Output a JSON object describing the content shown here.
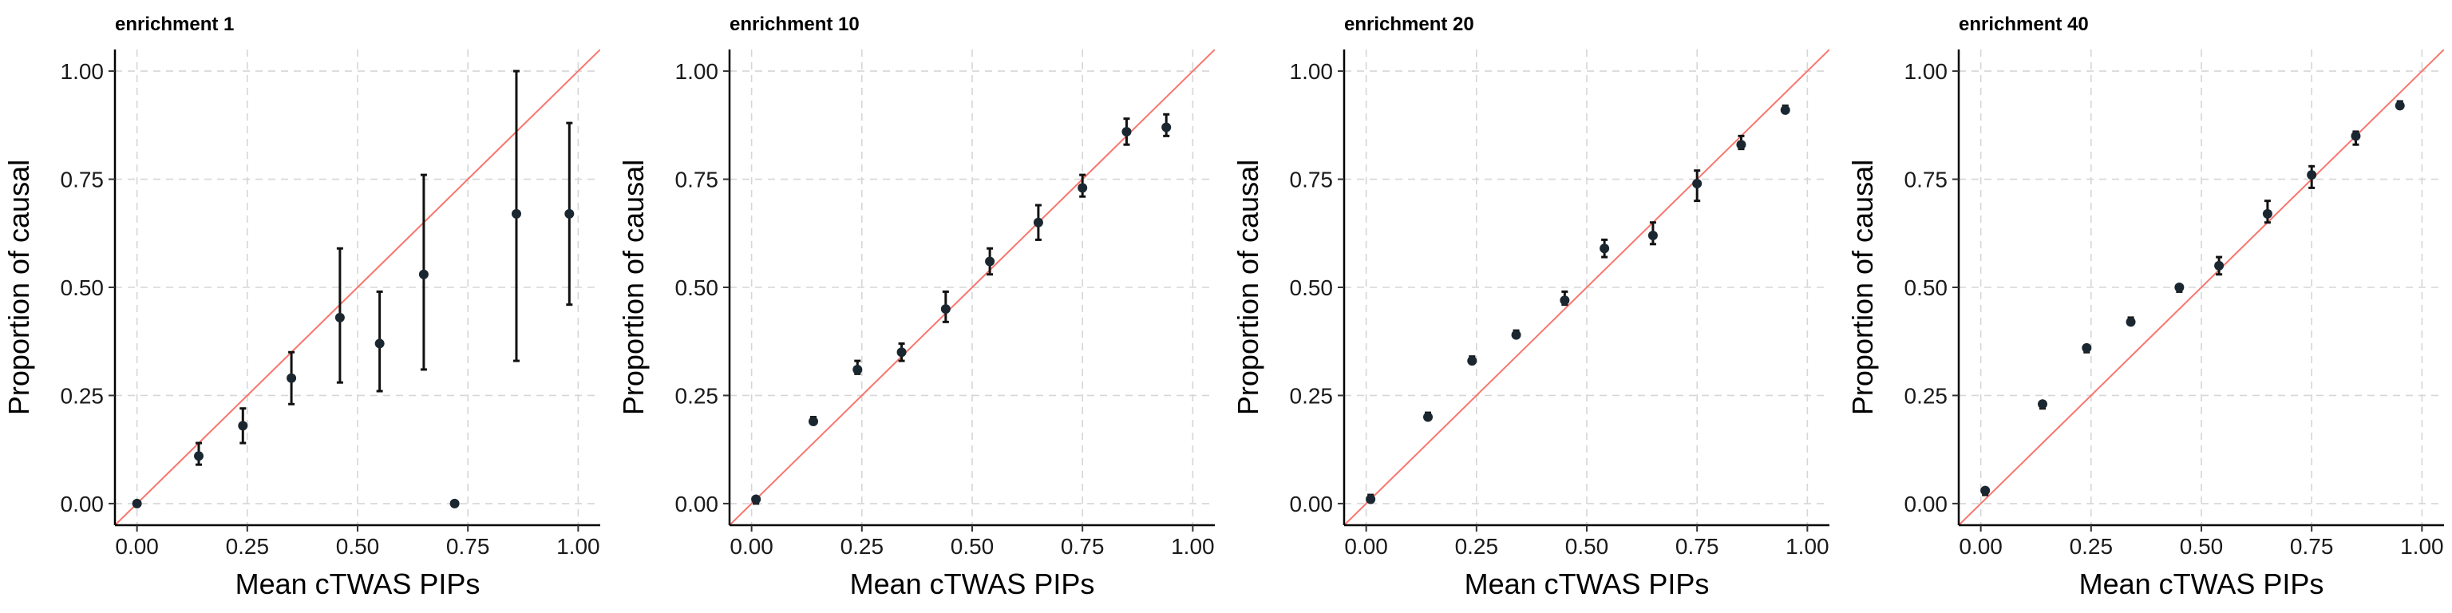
{
  "chart_data": [
    {
      "type": "scatter",
      "title": "enrichment 1",
      "xlabel": "Mean cTWAS PIPs",
      "ylabel": "Proportion of causal",
      "xlim": [
        -0.05,
        1.05
      ],
      "ylim": [
        -0.05,
        1.05
      ],
      "xticks": [
        0,
        0.25,
        0.5,
        0.75,
        1
      ],
      "xtick_labels": [
        "0.00",
        "0.25",
        "0.50",
        "0.75",
        "1.00"
      ],
      "yticks": [
        0,
        0.25,
        0.5,
        0.75,
        1
      ],
      "ytick_labels": [
        "0.00",
        "0.25",
        "0.50",
        "0.75",
        "1.00"
      ],
      "grid": true,
      "reference_line": {
        "slope": 1,
        "intercept": 0,
        "color": "#f8766d"
      },
      "points": [
        {
          "x": 0.0,
          "y": 0.0,
          "ymin": 0.0,
          "ymax": 0.0
        },
        {
          "x": 0.14,
          "y": 0.11,
          "ymin": 0.09,
          "ymax": 0.14
        },
        {
          "x": 0.24,
          "y": 0.18,
          "ymin": 0.14,
          "ymax": 0.22
        },
        {
          "x": 0.35,
          "y": 0.29,
          "ymin": 0.23,
          "ymax": 0.35
        },
        {
          "x": 0.46,
          "y": 0.43,
          "ymin": 0.28,
          "ymax": 0.59
        },
        {
          "x": 0.55,
          "y": 0.37,
          "ymin": 0.26,
          "ymax": 0.49
        },
        {
          "x": 0.65,
          "y": 0.53,
          "ymin": 0.31,
          "ymax": 0.76
        },
        {
          "x": 0.72,
          "y": 0.0,
          "ymin": 0.0,
          "ymax": 0.0
        },
        {
          "x": 0.86,
          "y": 0.67,
          "ymin": 0.33,
          "ymax": 1.0
        },
        {
          "x": 0.98,
          "y": 0.67,
          "ymin": 0.46,
          "ymax": 0.88
        }
      ]
    },
    {
      "type": "scatter",
      "title": "enrichment 10",
      "xlabel": "Mean cTWAS PIPs",
      "ylabel": "Proportion of causal",
      "xlim": [
        -0.05,
        1.05
      ],
      "ylim": [
        -0.05,
        1.05
      ],
      "xticks": [
        0,
        0.25,
        0.5,
        0.75,
        1
      ],
      "xtick_labels": [
        "0.00",
        "0.25",
        "0.50",
        "0.75",
        "1.00"
      ],
      "yticks": [
        0,
        0.25,
        0.5,
        0.75,
        1
      ],
      "ytick_labels": [
        "0.00",
        "0.25",
        "0.50",
        "0.75",
        "1.00"
      ],
      "grid": true,
      "reference_line": {
        "slope": 1,
        "intercept": 0,
        "color": "#f8766d"
      },
      "points": [
        {
          "x": 0.01,
          "y": 0.01,
          "ymin": 0.0,
          "ymax": 0.01
        },
        {
          "x": 0.14,
          "y": 0.19,
          "ymin": 0.19,
          "ymax": 0.2
        },
        {
          "x": 0.24,
          "y": 0.31,
          "ymin": 0.3,
          "ymax": 0.33
        },
        {
          "x": 0.34,
          "y": 0.35,
          "ymin": 0.33,
          "ymax": 0.37
        },
        {
          "x": 0.44,
          "y": 0.45,
          "ymin": 0.42,
          "ymax": 0.49
        },
        {
          "x": 0.54,
          "y": 0.56,
          "ymin": 0.53,
          "ymax": 0.59
        },
        {
          "x": 0.65,
          "y": 0.65,
          "ymin": 0.61,
          "ymax": 0.69
        },
        {
          "x": 0.75,
          "y": 0.73,
          "ymin": 0.71,
          "ymax": 0.76
        },
        {
          "x": 0.85,
          "y": 0.86,
          "ymin": 0.83,
          "ymax": 0.89
        },
        {
          "x": 0.94,
          "y": 0.87,
          "ymin": 0.85,
          "ymax": 0.9
        }
      ]
    },
    {
      "type": "scatter",
      "title": "enrichment 20",
      "xlabel": "Mean cTWAS PIPs",
      "ylabel": "Proportion of causal",
      "xlim": [
        -0.05,
        1.05
      ],
      "ylim": [
        -0.05,
        1.05
      ],
      "xticks": [
        0,
        0.25,
        0.5,
        0.75,
        1
      ],
      "xtick_labels": [
        "0.00",
        "0.25",
        "0.50",
        "0.75",
        "1.00"
      ],
      "yticks": [
        0,
        0.25,
        0.5,
        0.75,
        1
      ],
      "ytick_labels": [
        "0.00",
        "0.25",
        "0.50",
        "0.75",
        "1.00"
      ],
      "grid": true,
      "reference_line": {
        "slope": 1,
        "intercept": 0,
        "color": "#f8766d"
      },
      "points": [
        {
          "x": 0.01,
          "y": 0.01,
          "ymin": 0.01,
          "ymax": 0.02
        },
        {
          "x": 0.14,
          "y": 0.2,
          "ymin": 0.2,
          "ymax": 0.21
        },
        {
          "x": 0.24,
          "y": 0.33,
          "ymin": 0.33,
          "ymax": 0.34
        },
        {
          "x": 0.34,
          "y": 0.39,
          "ymin": 0.39,
          "ymax": 0.4
        },
        {
          "x": 0.45,
          "y": 0.47,
          "ymin": 0.46,
          "ymax": 0.49
        },
        {
          "x": 0.54,
          "y": 0.59,
          "ymin": 0.57,
          "ymax": 0.61
        },
        {
          "x": 0.65,
          "y": 0.62,
          "ymin": 0.6,
          "ymax": 0.65
        },
        {
          "x": 0.75,
          "y": 0.74,
          "ymin": 0.7,
          "ymax": 0.77
        },
        {
          "x": 0.85,
          "y": 0.83,
          "ymin": 0.82,
          "ymax": 0.85
        },
        {
          "x": 0.95,
          "y": 0.91,
          "ymin": 0.91,
          "ymax": 0.92
        }
      ]
    },
    {
      "type": "scatter",
      "title": "enrichment 40",
      "xlabel": "Mean cTWAS PIPs",
      "ylabel": "Proportion of causal",
      "xlim": [
        -0.05,
        1.05
      ],
      "ylim": [
        -0.05,
        1.05
      ],
      "xticks": [
        0,
        0.25,
        0.5,
        0.75,
        1
      ],
      "xtick_labels": [
        "0.00",
        "0.25",
        "0.50",
        "0.75",
        "1.00"
      ],
      "yticks": [
        0,
        0.25,
        0.5,
        0.75,
        1
      ],
      "ytick_labels": [
        "0.00",
        "0.25",
        "0.50",
        "0.75",
        "1.00"
      ],
      "grid": true,
      "reference_line": {
        "slope": 1,
        "intercept": 0,
        "color": "#f8766d"
      },
      "points": [
        {
          "x": 0.01,
          "y": 0.03,
          "ymin": 0.02,
          "ymax": 0.03
        },
        {
          "x": 0.14,
          "y": 0.23,
          "ymin": 0.22,
          "ymax": 0.23
        },
        {
          "x": 0.24,
          "y": 0.36,
          "ymin": 0.35,
          "ymax": 0.36
        },
        {
          "x": 0.34,
          "y": 0.42,
          "ymin": 0.42,
          "ymax": 0.43
        },
        {
          "x": 0.45,
          "y": 0.5,
          "ymin": 0.49,
          "ymax": 0.5
        },
        {
          "x": 0.54,
          "y": 0.55,
          "ymin": 0.53,
          "ymax": 0.57
        },
        {
          "x": 0.65,
          "y": 0.67,
          "ymin": 0.65,
          "ymax": 0.7
        },
        {
          "x": 0.75,
          "y": 0.76,
          "ymin": 0.73,
          "ymax": 0.78
        },
        {
          "x": 0.85,
          "y": 0.85,
          "ymin": 0.83,
          "ymax": 0.86
        },
        {
          "x": 0.95,
          "y": 0.92,
          "ymin": 0.92,
          "ymax": 0.93
        }
      ]
    }
  ]
}
